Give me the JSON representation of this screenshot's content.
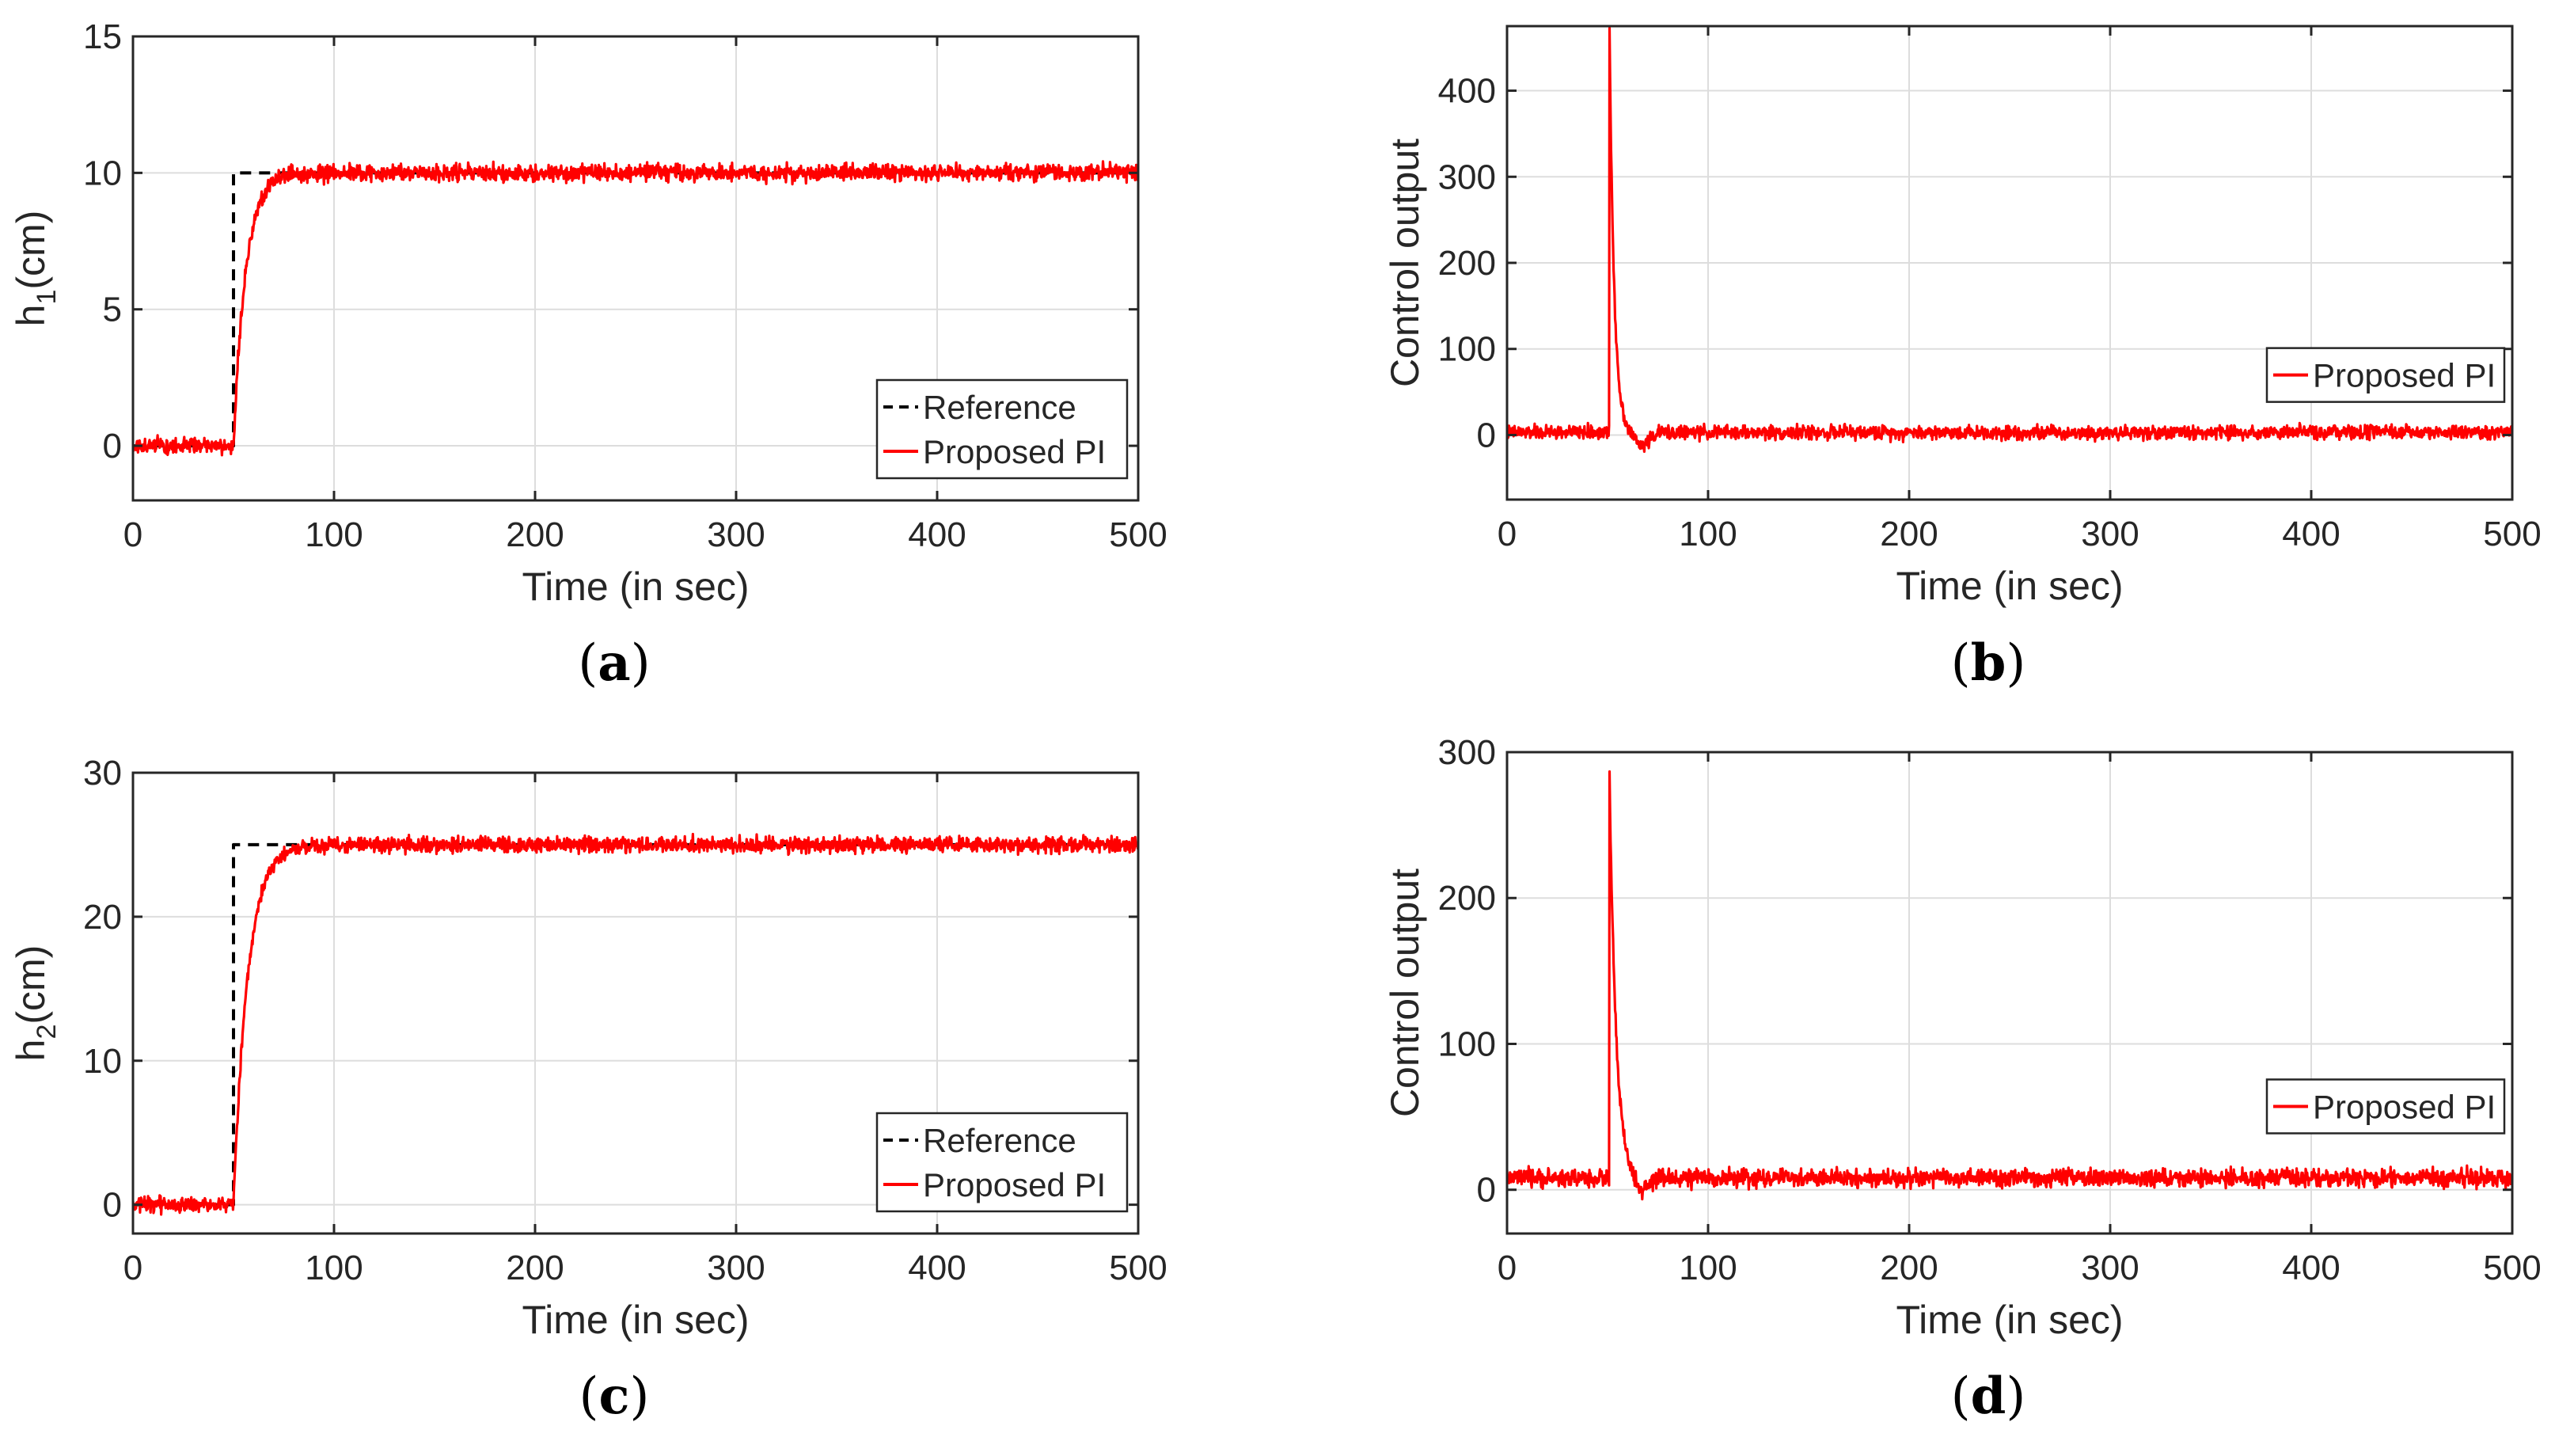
{
  "figure": {
    "panels": [
      {
        "label": "a",
        "open": "(",
        "close": ")"
      },
      {
        "label": "b",
        "open": "(",
        "close": ")"
      },
      {
        "label": "c",
        "open": "(",
        "close": ")"
      },
      {
        "label": "d",
        "open": "(",
        "close": ")"
      }
    ]
  },
  "colors": {
    "proposed": "#ff0000",
    "reference": "#000000",
    "grid": "#dddddd",
    "axis": "#262626"
  },
  "chart_data": [
    {
      "id": "a",
      "type": "line",
      "xlabel": "Time (in sec)",
      "ylabel": "h1(cm)",
      "ylabel_main": "h",
      "ylabel_sub": "1",
      "ylabel_rest": "(cm)",
      "xlim": [
        0,
        500
      ],
      "xticks": [
        0,
        100,
        200,
        300,
        400,
        500
      ],
      "xtick_labels": [
        "0",
        "100",
        "200",
        "300",
        "400",
        "500"
      ],
      "ylim": [
        -2,
        15
      ],
      "yticks": [
        0,
        5,
        10,
        15
      ],
      "ytick_labels": [
        "0",
        "5",
        "10",
        "15"
      ],
      "grid": true,
      "legend": {
        "position": "bottom-right",
        "entries": [
          "Reference",
          "Proposed PI"
        ]
      },
      "series": [
        {
          "name": "Reference",
          "style": "dashed",
          "color": "#000000",
          "x": [
            0,
            50,
            50,
            500
          ],
          "y": [
            0,
            0,
            10,
            10
          ]
        },
        {
          "name": "Proposed PI",
          "style": "solid",
          "color": "#ff0000",
          "model": {
            "kind": "step_response",
            "initial": 0,
            "step_time": 50,
            "final": 10,
            "time_constant": 6,
            "noise_amplitude": 0.45,
            "samples": 2000
          }
        }
      ]
    },
    {
      "id": "b",
      "type": "line",
      "xlabel": "Time (in sec)",
      "ylabel": "Control output",
      "xlim": [
        0,
        500
      ],
      "xticks": [
        0,
        100,
        200,
        300,
        400,
        500
      ],
      "xtick_labels": [
        "0",
        "100",
        "200",
        "300",
        "400",
        "500"
      ],
      "ylim": [
        -75,
        475
      ],
      "yticks": [
        0,
        100,
        200,
        300,
        400
      ],
      "ytick_labels": [
        "0",
        "100",
        "200",
        "300",
        "400"
      ],
      "grid": true,
      "legend": {
        "position": "right",
        "entries": [
          "Proposed PI"
        ]
      },
      "series": [
        {
          "name": "Proposed PI",
          "style": "solid",
          "color": "#ff0000",
          "model": {
            "kind": "spike",
            "baseline": 3,
            "spike_time": 51,
            "peak": 462,
            "decay": 2.3,
            "dip": -15,
            "noise_amplitude": 12,
            "samples": 2000
          }
        }
      ]
    },
    {
      "id": "c",
      "type": "line",
      "xlabel": "Time (in sec)",
      "ylabel": "h2(cm)",
      "ylabel_main": "h",
      "ylabel_sub": "2",
      "ylabel_rest": "(cm)",
      "xlim": [
        0,
        500
      ],
      "xticks": [
        0,
        100,
        200,
        300,
        400,
        500
      ],
      "xtick_labels": [
        "0",
        "100",
        "200",
        "300",
        "400",
        "500"
      ],
      "ylim": [
        -2,
        30
      ],
      "yticks": [
        0,
        10,
        20,
        30
      ],
      "ytick_labels": [
        "0",
        "10",
        "20",
        "30"
      ],
      "grid": true,
      "legend": {
        "position": "bottom-right",
        "entries": [
          "Reference",
          "Proposed PI"
        ]
      },
      "series": [
        {
          "name": "Reference",
          "style": "dashed",
          "color": "#000000",
          "x": [
            0,
            50,
            50,
            500
          ],
          "y": [
            0,
            0,
            25,
            25
          ]
        },
        {
          "name": "Proposed PI",
          "style": "solid",
          "color": "#ff0000",
          "model": {
            "kind": "step_response",
            "initial": 0,
            "step_time": 50,
            "final": 25,
            "time_constant": 7,
            "noise_amplitude": 0.8,
            "samples": 2000
          }
        }
      ]
    },
    {
      "id": "d",
      "type": "line",
      "xlabel": "Time (in sec)",
      "ylabel": "Control output",
      "xlim": [
        0,
        500
      ],
      "xticks": [
        0,
        100,
        200,
        300,
        400,
        500
      ],
      "xtick_labels": [
        "0",
        "100",
        "200",
        "300",
        "400",
        "500"
      ],
      "ylim": [
        -30,
        300
      ],
      "yticks": [
        0,
        100,
        200,
        300
      ],
      "ytick_labels": [
        "0",
        "100",
        "200",
        "300"
      ],
      "grid": true,
      "legend": {
        "position": "right",
        "entries": [
          "Proposed PI"
        ]
      },
      "series": [
        {
          "name": "Proposed PI",
          "style": "solid",
          "color": "#ff0000",
          "model": {
            "kind": "spike",
            "baseline": 8,
            "spike_time": 51,
            "peak": 274,
            "decay": 3.2,
            "dip": -10,
            "noise_amplitude": 9,
            "samples": 2000
          }
        }
      ]
    }
  ]
}
